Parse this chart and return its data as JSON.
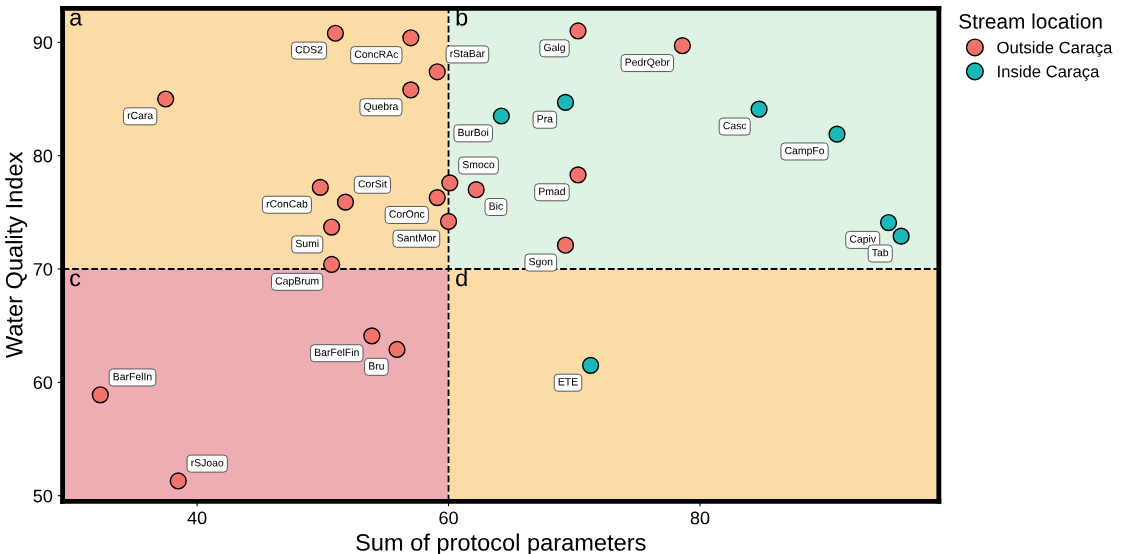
{
  "chart_data": {
    "type": "scatter",
    "xlabel": "Sum of protocol parameters",
    "ylabel": "Water Quality Index",
    "legend_title": "Stream location",
    "legend": "top right",
    "marker": "circle",
    "grid": false,
    "xlim": [
      29.3,
      99
    ],
    "ylim": [
      49.5,
      93
    ],
    "xticks": [
      40,
      60,
      80
    ],
    "yticks": [
      50,
      60,
      70,
      80,
      90
    ],
    "ref_lines": [
      {
        "axis": "x",
        "value": 60,
        "line_style": "dashed",
        "color": "#000000"
      },
      {
        "axis": "y",
        "value": 70,
        "line_style": "dashed",
        "color": "#000000"
      }
    ],
    "bands": [
      {
        "axis": "x",
        "from": 29.3,
        "to": 60,
        "label": "a",
        "color": "#fbdca6"
      },
      {
        "axis": "x",
        "from": 60,
        "to": 99,
        "label": "b",
        "color": "#dff3e4"
      },
      {
        "axis": "x",
        "from": 29.3,
        "to": 60,
        "label": "c",
        "color": "#eeadb3"
      },
      {
        "axis": "x",
        "from": 60,
        "to": 99,
        "label": "d",
        "color": "#fbdca6"
      }
    ],
    "series": [
      {
        "name": "Outside Caraça",
        "color": "#f2736b",
        "x": [
          57,
          51,
          59.1,
          57,
          37.5,
          70.3,
          78.6,
          49.8,
          59.1,
          60.1,
          62.2,
          70.3,
          51.8,
          50.7,
          60,
          69.3,
          50.7,
          53.9,
          55.9,
          32.3,
          38.5
        ],
        "values": [
          90.4,
          90.8,
          87.4,
          85.8,
          85.0,
          91.0,
          89.7,
          77.2,
          76.3,
          77.6,
          77.0,
          78.3,
          75.9,
          73.7,
          74.2,
          72.1,
          70.4,
          64.1,
          62.9,
          58.9,
          51.3
        ]
      },
      {
        "name": "Inside Caraça",
        "color": "#1ab8b8",
        "x": [
          69.3,
          64.2,
          84.7,
          90.9,
          95,
          96,
          71.3
        ],
        "values": [
          84.7,
          83.5,
          84.1,
          81.9,
          74.1,
          72.9,
          61.5
        ]
      }
    ],
    "annotations": [
      {
        "text": "ConcRAc",
        "x": 57,
        "y": 90.4
      },
      {
        "text": "CDS2",
        "x": 51,
        "y": 90.8
      },
      {
        "text": "rStaBar",
        "x": 59.1,
        "y": 87.4
      },
      {
        "text": "Quebra",
        "x": 57,
        "y": 85.8
      },
      {
        "text": "rCara",
        "x": 37.5,
        "y": 85.0
      },
      {
        "text": "Galg",
        "x": 70.3,
        "y": 91.0
      },
      {
        "text": "PedrQebr",
        "x": 78.6,
        "y": 89.7
      },
      {
        "text": "rConCab",
        "x": 49.8,
        "y": 77.2
      },
      {
        "text": "CorOnc",
        "x": 59.1,
        "y": 76.3
      },
      {
        "text": "Smoco",
        "x": 60.1,
        "y": 77.6
      },
      {
        "text": "Bic",
        "x": 62.2,
        "y": 77.0
      },
      {
        "text": "Pmad",
        "x": 70.3,
        "y": 78.3
      },
      {
        "text": "CorSit",
        "x": 51.8,
        "y": 75.9
      },
      {
        "text": "Sumi",
        "x": 50.7,
        "y": 73.7
      },
      {
        "text": "SantMor",
        "x": 60,
        "y": 74.2
      },
      {
        "text": "Sgon",
        "x": 69.3,
        "y": 72.1
      },
      {
        "text": "CapBrum",
        "x": 50.7,
        "y": 70.4
      },
      {
        "text": "BarFelFin",
        "x": 53.9,
        "y": 64.1
      },
      {
        "text": "Bru",
        "x": 55.9,
        "y": 62.9
      },
      {
        "text": "BarFelIn",
        "x": 32.3,
        "y": 58.9
      },
      {
        "text": "rSJoao",
        "x": 38.5,
        "y": 51.3
      },
      {
        "text": "Pra",
        "x": 69.3,
        "y": 84.7
      },
      {
        "text": "BurBoi",
        "x": 64.2,
        "y": 83.5
      },
      {
        "text": "Casc",
        "x": 84.7,
        "y": 84.1
      },
      {
        "text": "CampFo",
        "x": 90.9,
        "y": 81.9
      },
      {
        "text": "Capiv",
        "x": 95,
        "y": 74.1
      },
      {
        "text": "Tab",
        "x": 96,
        "y": 72.9
      },
      {
        "text": "ETE",
        "x": 71.3,
        "y": 61.5
      }
    ]
  }
}
